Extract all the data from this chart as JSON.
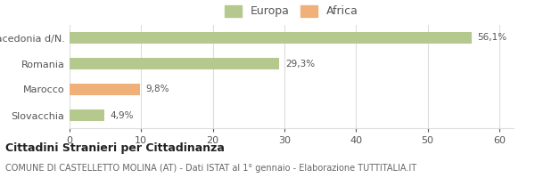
{
  "categories": [
    "Macedonia d/N.",
    "Romania",
    "Marocco",
    "Slovacchia"
  ],
  "values": [
    56.1,
    29.3,
    9.8,
    4.9
  ],
  "labels": [
    "56,1%",
    "29,3%",
    "9,8%",
    "4,9%"
  ],
  "bar_colors": [
    "#b5c98e",
    "#b5c98e",
    "#f0b07a",
    "#b5c98e"
  ],
  "legend_items": [
    {
      "label": "Europa",
      "color": "#b5c98e"
    },
    {
      "label": "Africa",
      "color": "#f0b07a"
    }
  ],
  "xlim": [
    0,
    62
  ],
  "xticks": [
    0,
    10,
    20,
    30,
    40,
    50,
    60
  ],
  "title": "Cittadini Stranieri per Cittadinanza",
  "subtitle": "COMUNE DI CASTELLETTO MOLINA (AT) - Dati ISTAT al 1° gennaio - Elaborazione TUTTITALIA.IT",
  "background_color": "#ffffff",
  "bar_edge_color": "none",
  "grid_color": "#dddddd",
  "text_color": "#555555",
  "title_color": "#222222",
  "subtitle_color": "#666666",
  "bar_height": 0.45
}
